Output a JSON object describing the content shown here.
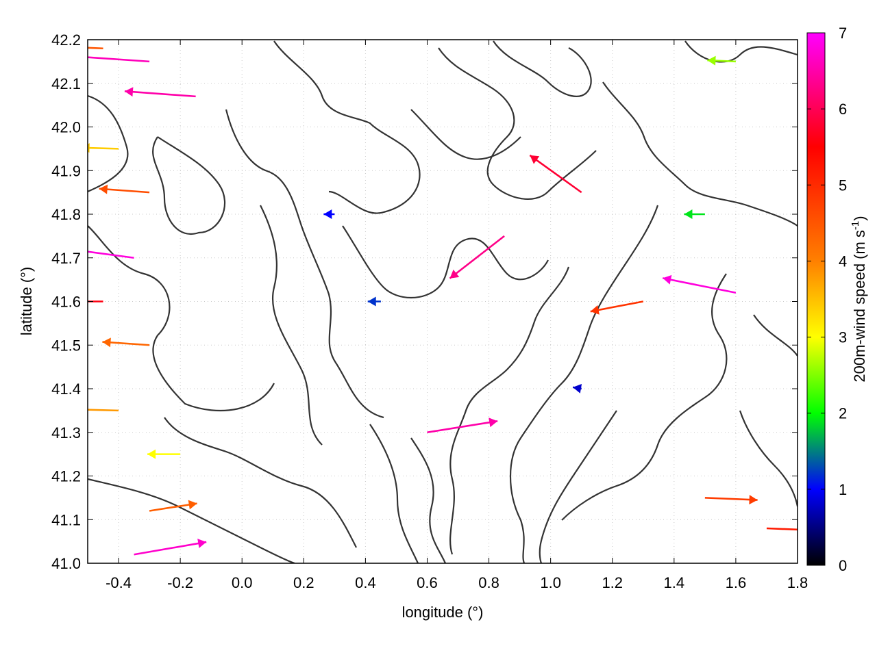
{
  "chart_data": {
    "type": "vector-field",
    "xlabel": "longitude (°)",
    "ylabel": "latitude (°)",
    "xlim": [
      -0.5,
      1.8
    ],
    "ylim": [
      41.0,
      42.2
    ],
    "x_ticks": [
      -0.4,
      -0.2,
      0.0,
      0.2,
      0.4,
      0.6,
      0.8,
      1.0,
      1.2,
      1.4,
      1.6,
      1.8
    ],
    "x_tick_labels": [
      "-0.4",
      "-0.2",
      "0.0",
      "0.2",
      "0.4",
      "0.6",
      "0.8",
      "1.0",
      "1.2",
      "1.4",
      "1.6",
      "1.8"
    ],
    "y_ticks": [
      41.0,
      41.1,
      41.2,
      41.3,
      41.4,
      41.5,
      41.6,
      41.7,
      41.8,
      41.9,
      42.0,
      42.1,
      42.2
    ],
    "y_tick_labels": [
      "41.0",
      "41.1",
      "41.2",
      "41.3",
      "41.4",
      "41.5",
      "41.6",
      "41.7",
      "41.8",
      "41.9",
      "42.0",
      "42.1",
      "42.2"
    ],
    "grid": true,
    "colorbar": {
      "label_main": "200m-wind speed (m s",
      "label_sup": "-1",
      "label_end": ")",
      "range": [
        0,
        7
      ],
      "ticks": [
        0,
        1,
        2,
        3,
        4,
        5,
        6,
        7
      ],
      "tick_labels": [
        "0",
        "1",
        "2",
        "3",
        "4",
        "5",
        "6",
        "7"
      ],
      "colors": [
        "#000000",
        "#0000ff",
        "#00ff00",
        "#ffff00",
        "#ff8000",
        "#ff0000",
        "#ff00ff"
      ],
      "color_stops": [
        0,
        1,
        2,
        3,
        4,
        5.5,
        7
      ]
    },
    "contour_color": "#333333",
    "vectors": [
      {
        "lon": -0.45,
        "lat": 42.18,
        "u": -2.5,
        "v": 0.1,
        "speed": 4.5
      },
      {
        "lon": -0.3,
        "lat": 42.15,
        "u": -5.8,
        "v": 0.4,
        "speed": 6.6
      },
      {
        "lon": -0.15,
        "lat": 42.07,
        "u": -5.5,
        "v": 0.4,
        "speed": 6.5
      },
      {
        "lon": -0.4,
        "lat": 41.95,
        "u": -3.4,
        "v": 0.1,
        "speed": 3.4
      },
      {
        "lon": -0.3,
        "lat": 41.85,
        "u": -4.1,
        "v": 0.3,
        "speed": 4.6
      },
      {
        "lon": -0.35,
        "lat": 41.7,
        "u": -6.0,
        "v": 0.8,
        "speed": 6.8
      },
      {
        "lon": -0.45,
        "lat": 41.6,
        "u": -4.7,
        "v": 0.0,
        "speed": 5.6
      },
      {
        "lon": -0.3,
        "lat": 41.5,
        "u": -4.4,
        "v": 0.3,
        "speed": 4.3
      },
      {
        "lon": -0.4,
        "lat": 41.35,
        "u": -3.8,
        "v": 0.1,
        "speed": 3.8
      },
      {
        "lon": -0.2,
        "lat": 41.25,
        "u": -2.8,
        "v": 0.0,
        "speed": 3.0
      },
      {
        "lon": -0.3,
        "lat": 41.12,
        "u": 3.2,
        "v": 0.5,
        "speed": 4.4
      },
      {
        "lon": -0.35,
        "lat": 41.02,
        "u": 5.2,
        "v": 0.9,
        "speed": 6.7
      },
      {
        "lon": 0.3,
        "lat": 41.8,
        "u": -0.6,
        "v": 0.0,
        "speed": 1.0
      },
      {
        "lon": 0.45,
        "lat": 41.6,
        "u": -1.0,
        "v": 0.0,
        "speed": 1.2
      },
      {
        "lon": 0.6,
        "lat": 41.3,
        "u": 5.0,
        "v": 0.8,
        "speed": 6.5
      },
      {
        "lon": 0.85,
        "lat": 41.75,
        "u": -1.8,
        "v": -1.4,
        "speed": 6.3
      },
      {
        "lon": 1.1,
        "lat": 41.85,
        "u": -2.5,
        "v": 1.8,
        "speed": 5.8
      },
      {
        "lon": 1.3,
        "lat": 41.6,
        "u": -4.2,
        "v": -0.8,
        "speed": 4.9
      },
      {
        "lon": 1.6,
        "lat": 41.62,
        "u": -3.0,
        "v": 0.6,
        "speed": 6.8
      },
      {
        "lon": 1.5,
        "lat": 41.15,
        "u": 4.8,
        "v": -0.2,
        "speed": 4.8
      },
      {
        "lon": 1.7,
        "lat": 41.08,
        "u": 4.9,
        "v": -0.2,
        "speed": 5.2
      },
      {
        "lon": 1.1,
        "lat": 41.4,
        "u": -0.6,
        "v": 0.1,
        "speed": 0.8
      },
      {
        "lon": 1.5,
        "lat": 41.8,
        "u": -1.8,
        "v": 0.0,
        "speed": 1.9
      },
      {
        "lon": 1.6,
        "lat": 42.15,
        "u": -2.3,
        "v": 0.1,
        "speed": 2.6
      }
    ]
  }
}
